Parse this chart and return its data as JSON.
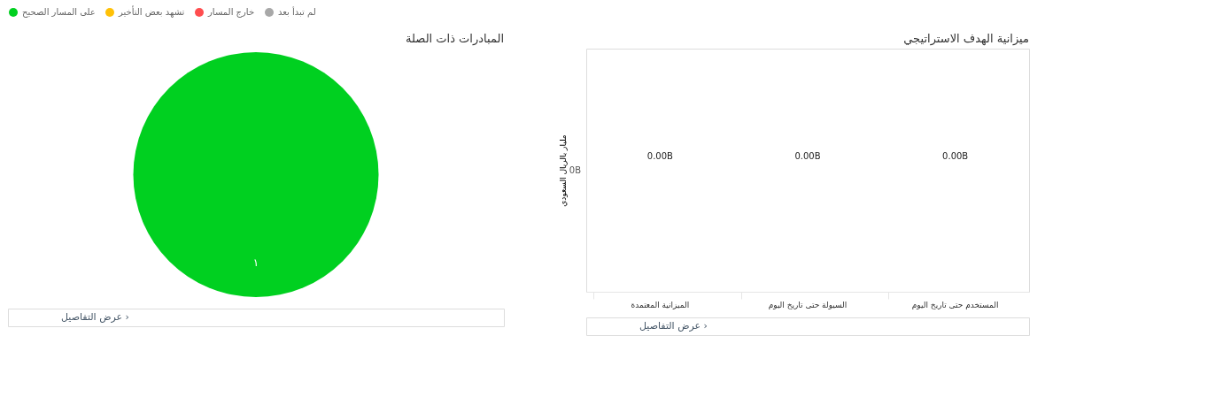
{
  "chart_data": [
    {
      "type": "pie",
      "title": "المبادرات ذات الصلة",
      "categories": [
        "على المسار الصحيح",
        "تشهد بعض التأخير",
        "خارج المسار",
        "لم تبدأ بعد"
      ],
      "values": [
        1,
        0,
        0,
        0
      ],
      "colors": [
        "#00d020",
        "#ffc107",
        "#ff4d4f",
        "#a8a8a8"
      ],
      "value_labels": [
        "١",
        null,
        null,
        null
      ],
      "legend": "top",
      "annotations": [
        "عرض التفاصيل ›"
      ]
    },
    {
      "type": "other",
      "title": "ميزانية الهدف الاستراتيجي",
      "ylabel": "مليار بالريال السعودي",
      "categories": [
        "الميزانية المعتمدة",
        "السيولة حتى تاريخ اليوم",
        "المستخدم حتى تاريخ اليوم"
      ],
      "values": [
        0,
        0,
        0
      ],
      "value_labels": [
        "0.00B",
        "0.00B",
        "0.00B"
      ],
      "annotations": [
        "0B",
        "عرض التفاصيل ›"
      ]
    }
  ]
}
